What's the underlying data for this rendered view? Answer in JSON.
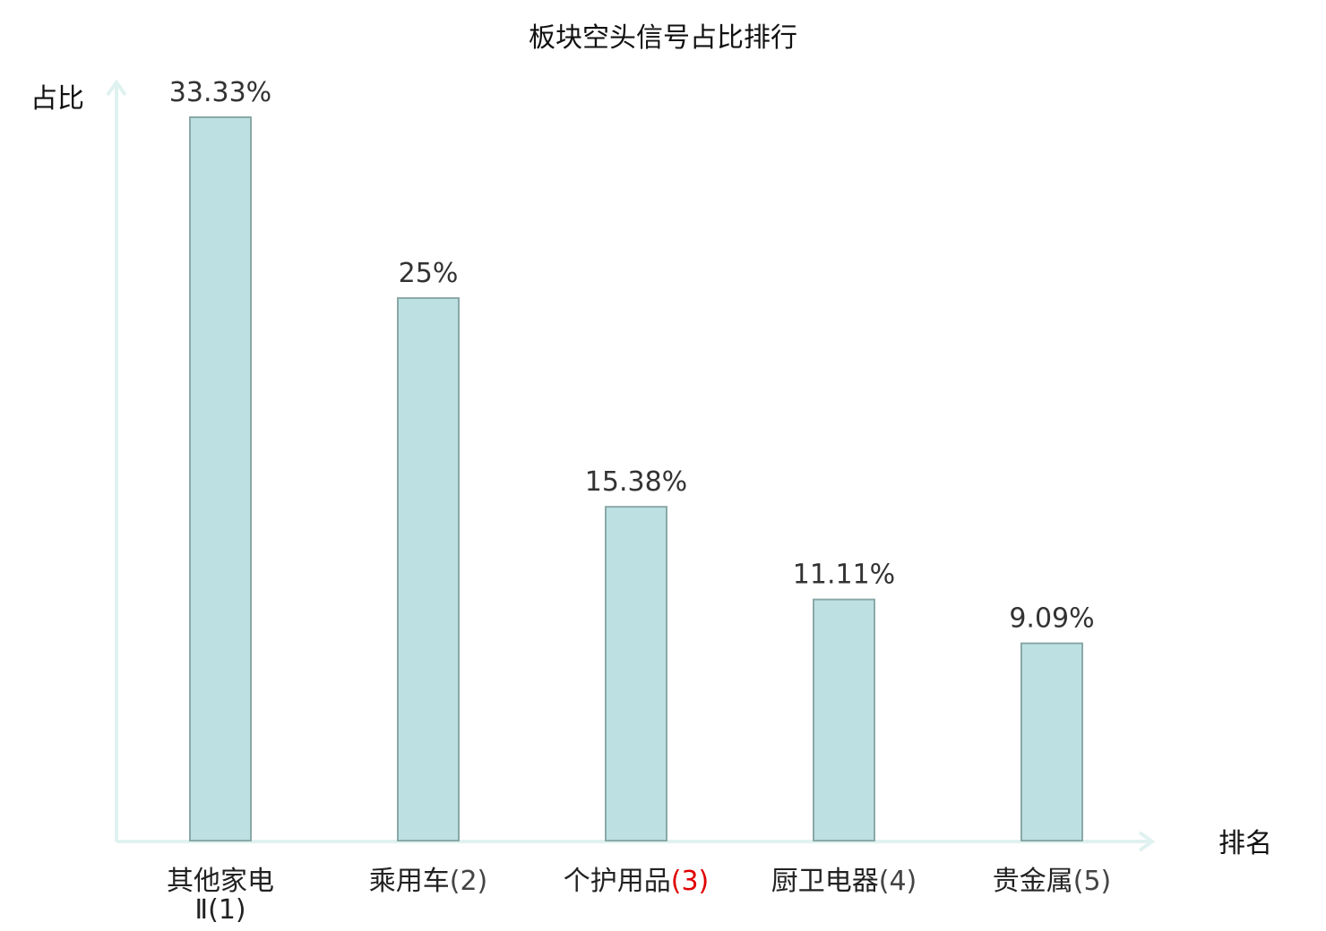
{
  "chart_data": {
    "type": "bar",
    "title": "板块空头信号占比排行",
    "xlabel": "排名",
    "ylabel": "占比",
    "categories": [
      "其他家电Ⅱ",
      "乘用车",
      "个护用品",
      "厨卫电器",
      "贵金属"
    ],
    "ranks": [
      "(1)",
      "(2)",
      "(3)",
      "(4)",
      "(5)"
    ],
    "values": [
      33.33,
      25,
      15.38,
      11.11,
      9.09
    ],
    "value_labels": [
      "33.33%",
      "25%",
      "15.38%",
      "11.11%",
      "9.09%"
    ],
    "ylim": [
      0,
      33.33
    ],
    "grid": false,
    "highlight_index": 2,
    "colors": {
      "bar_fill": "#bde1e3",
      "bar_stroke": "#8aa8a8",
      "axis": "#dff2ef",
      "highlight_text": "#e00000",
      "text": "#222222"
    }
  }
}
